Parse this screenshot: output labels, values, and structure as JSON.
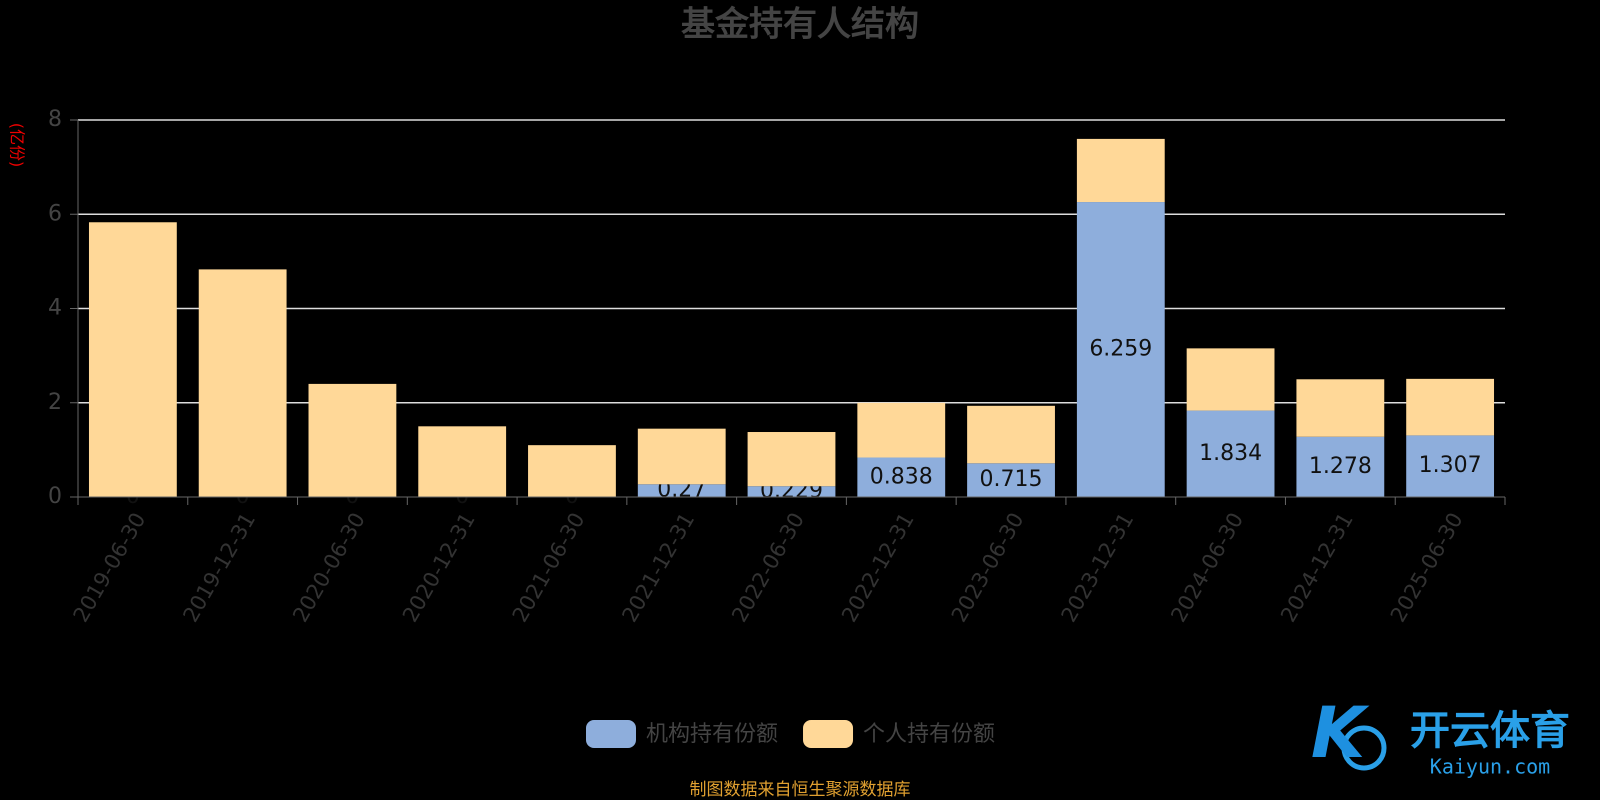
{
  "chart_data": {
    "type": "stacked-bar",
    "title": "基金持有人结构",
    "ylabel": "(亿份)",
    "categories": [
      "2019-06-30",
      "2019-12-31",
      "2020-06-30",
      "2020-12-31",
      "2021-06-30",
      "2021-12-31",
      "2022-06-30",
      "2022-12-31",
      "2023-06-30",
      "2023-12-31",
      "2024-06-30",
      "2024-12-31",
      "2025-06-30"
    ],
    "series": [
      {
        "name": "机构持有份额",
        "color": "#8eaedc",
        "values": [
          0,
          0,
          0,
          0,
          0,
          0.27,
          0.229,
          0.838,
          0.715,
          6.259,
          1.834,
          1.278,
          1.307
        ]
      },
      {
        "name": "个人持有份额",
        "color": "#ffd898",
        "values": [
          5.83,
          4.83,
          2.4,
          1.5,
          1.1,
          1.18,
          1.15,
          1.16,
          1.22,
          1.34,
          1.32,
          1.22,
          1.2
        ]
      }
    ],
    "ylim": [
      0,
      8
    ],
    "yticks": [
      0,
      2,
      4,
      6,
      8
    ],
    "grid": true,
    "source": "制图数据来自恒生聚源数据库"
  },
  "watermark": {
    "title": "开云体育",
    "subtitle": "Kaiyun.com"
  }
}
